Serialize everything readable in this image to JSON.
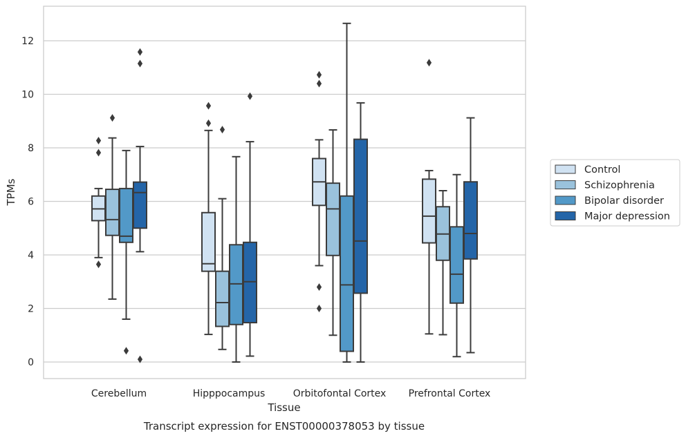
{
  "chart_data": {
    "type": "box",
    "title": "Transcript expression for ENST00000378053 by tissue",
    "xlabel": "Tissue",
    "ylabel": "TPMs",
    "ylim": [
      -0.6,
      13.3
    ],
    "yticks": [
      0,
      2,
      4,
      6,
      8,
      10,
      12
    ],
    "grid": true,
    "legend_position": "center-right",
    "categories": [
      "Cerebellum",
      "Hipppocampus",
      "Orbitofontal Cortex",
      "Prefrontal Cortex"
    ],
    "series": [
      {
        "name": "Control",
        "color": "#d0e2f2",
        "boxes": [
          {
            "whislo": 3.9,
            "q1": 5.28,
            "med": 5.72,
            "q3": 6.2,
            "whishi": 6.48,
            "fliers": [
              3.65,
              7.82,
              8.27
            ]
          },
          {
            "whislo": 1.03,
            "q1": 3.39,
            "med": 3.67,
            "q3": 5.58,
            "whishi": 8.65,
            "fliers": [
              8.92,
              9.57
            ]
          },
          {
            "whislo": 3.6,
            "q1": 5.85,
            "med": 6.73,
            "q3": 7.6,
            "whishi": 8.3,
            "fliers": [
              2.0,
              2.8,
              10.4,
              10.73
            ]
          },
          {
            "whislo": 1.05,
            "q1": 4.45,
            "med": 5.45,
            "q3": 6.83,
            "whishi": 7.15,
            "fliers": [
              11.18
            ]
          }
        ]
      },
      {
        "name": "Schizophrenia",
        "color": "#9ac2dc",
        "boxes": [
          {
            "whislo": 2.35,
            "q1": 4.73,
            "med": 5.32,
            "q3": 6.45,
            "whishi": 8.37,
            "fliers": [
              9.12
            ]
          },
          {
            "whislo": 0.47,
            "q1": 1.33,
            "med": 2.22,
            "q3": 3.39,
            "whishi": 6.1,
            "fliers": [
              8.68
            ]
          },
          {
            "whislo": 1.0,
            "q1": 3.98,
            "med": 5.72,
            "q3": 6.68,
            "whishi": 8.67,
            "fliers": []
          },
          {
            "whislo": 1.02,
            "q1": 3.8,
            "med": 4.78,
            "q3": 5.8,
            "whishi": 6.4,
            "fliers": []
          }
        ]
      },
      {
        "name": "Bipolar disorder",
        "color": "#5299c8",
        "boxes": [
          {
            "whislo": 1.6,
            "q1": 4.47,
            "med": 4.7,
            "q3": 6.48,
            "whishi": 7.9,
            "fliers": [
              0.42
            ]
          },
          {
            "whislo": 0.0,
            "q1": 1.4,
            "med": 2.92,
            "q3": 4.38,
            "whishi": 7.67,
            "fliers": []
          },
          {
            "whislo": 0.0,
            "q1": 0.4,
            "med": 2.88,
            "q3": 6.2,
            "whishi": 12.65,
            "fliers": []
          },
          {
            "whislo": 0.2,
            "q1": 2.2,
            "med": 3.28,
            "q3": 5.05,
            "whishi": 7.0,
            "fliers": []
          }
        ]
      },
      {
        "name": "Major depression",
        "color": "#2465a8",
        "boxes": [
          {
            "whislo": 4.12,
            "q1": 5.0,
            "med": 6.33,
            "q3": 6.72,
            "whishi": 8.05,
            "fliers": [
              0.1,
              11.15,
              11.58
            ]
          },
          {
            "whislo": 0.22,
            "q1": 1.47,
            "med": 3.0,
            "q3": 4.47,
            "whishi": 8.23,
            "fliers": [
              9.93
            ]
          },
          {
            "whislo": 0.0,
            "q1": 2.57,
            "med": 4.52,
            "q3": 8.32,
            "whishi": 9.68,
            "fliers": []
          },
          {
            "whislo": 0.35,
            "q1": 3.85,
            "med": 4.8,
            "q3": 6.73,
            "whishi": 9.12,
            "fliers": []
          }
        ]
      }
    ]
  }
}
